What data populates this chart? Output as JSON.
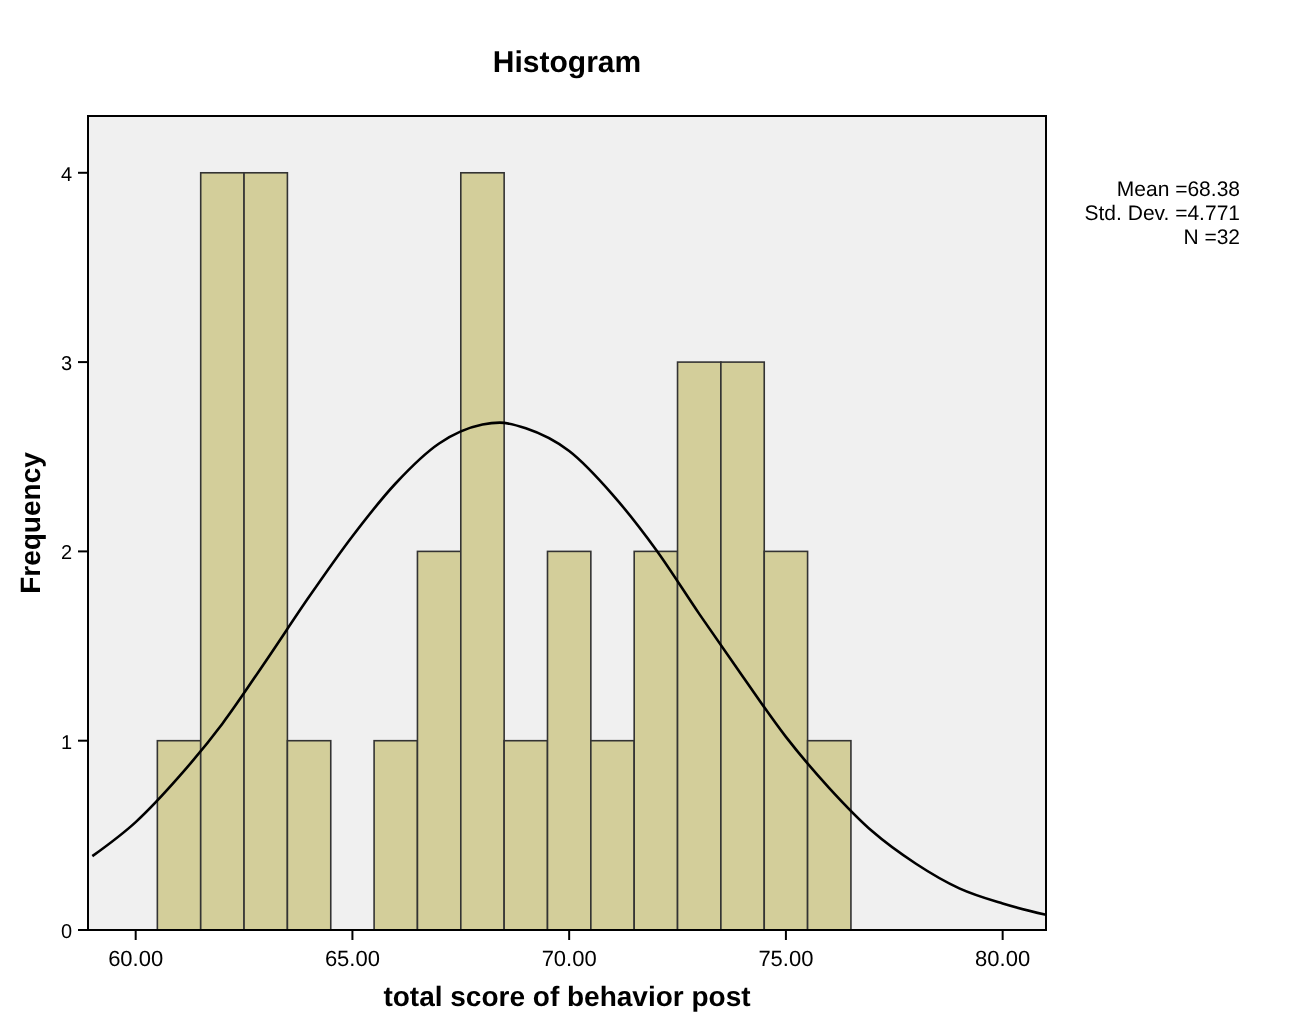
{
  "chart_data": {
    "type": "histogram",
    "title": "Histogram",
    "xlabel": "total score of behavior post",
    "ylabel": "Frequency",
    "bins": [
      60.5,
      61.5,
      62.5,
      63.5,
      64.5,
      65.5,
      66.5,
      67.5,
      68.5,
      69.5,
      70.5,
      71.5,
      72.5,
      73.5,
      74.5,
      75.5,
      76.5
    ],
    "values": [
      1,
      4,
      4,
      1,
      0,
      1,
      2,
      4,
      1,
      2,
      1,
      2,
      3,
      3,
      2,
      1
    ],
    "color": "#d3ce9a",
    "series": [
      {
        "type": "line",
        "color": "#000000",
        "x": [
          59,
          60,
          61,
          62,
          63,
          64,
          65,
          66,
          67,
          68,
          68.4,
          69,
          70,
          71,
          72,
          73,
          74,
          75,
          76,
          77,
          78,
          79,
          80,
          81
        ],
        "values": [
          0.39,
          0.57,
          0.81,
          1.09,
          1.42,
          1.76,
          2.08,
          2.36,
          2.57,
          2.67,
          2.68,
          2.65,
          2.53,
          2.3,
          2.01,
          1.67,
          1.34,
          1.02,
          0.75,
          0.52,
          0.35,
          0.22,
          0.14,
          0.08
        ]
      }
    ],
    "xlim": [
      58.9,
      81.0
    ],
    "ylim": [
      0,
      4.3
    ],
    "xticks": [
      {
        "value": 60,
        "label": "60.00"
      },
      {
        "value": 65,
        "label": "65.00"
      },
      {
        "value": 70,
        "label": "70.00"
      },
      {
        "value": 75,
        "label": "75.00"
      },
      {
        "value": 80,
        "label": "80.00"
      }
    ],
    "yticks": [
      0,
      1,
      2,
      3,
      4
    ],
    "annotations": [
      "Mean =68.38",
      "Std. Dev. =4.771",
      "N =32"
    ],
    "grid": false
  }
}
